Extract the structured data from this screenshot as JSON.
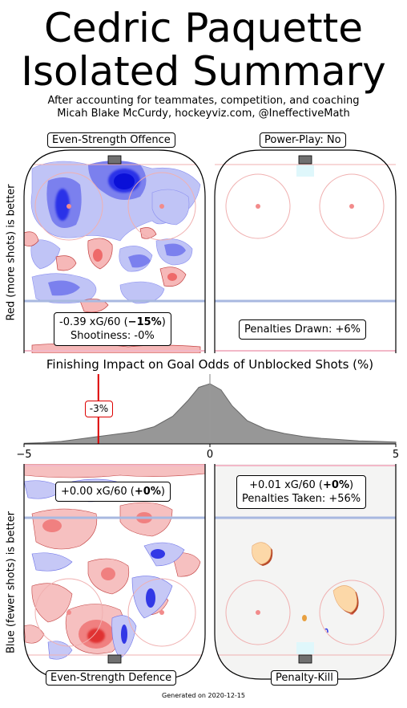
{
  "title_line1": "Cedric Paquette",
  "title_line2": "Isolated Summary",
  "subtitle_line1": "After accounting for teammates, competition, and coaching",
  "subtitle_line2": "Micah Blake McCurdy, hockeyviz.com, @IneffectiveMath",
  "side_label_top": "Red (more shots) is better",
  "side_label_bottom": "Blue (fewer shots) is better",
  "panels": {
    "es_offence": {
      "label": "Even-Strength Offence",
      "stat_prefix": "-0.39 xG/60 (",
      "stat_bold": "−15%",
      "stat_suffix": ")",
      "stat_line2": "Shootiness: -0%"
    },
    "pp": {
      "label": "Power-Play: No",
      "stat_line1": "Penalties Drawn: +6%"
    },
    "es_defence": {
      "label": "Even-Strength Defence",
      "stat_prefix": "+0.00 xG/60 (",
      "stat_bold": "+0%",
      "stat_suffix": ")"
    },
    "pk": {
      "label": "Penalty-Kill",
      "stat_prefix": "+0.01 xG/60 (",
      "stat_bold": "+0%",
      "stat_suffix": ")",
      "stat_line2": "Penalties Taken: +56%"
    }
  },
  "footer": "Generated on 2020-12-15",
  "colors": {
    "red": "#e8292b",
    "blue": "#1f24e0",
    "density": "#8c8c8c",
    "marker": "#dd0000",
    "blueline": "#a8b8e0"
  },
  "chart_data": {
    "type": "area",
    "title": "Finishing Impact on Goal Odds of Unblocked Shots (%)",
    "xlim": [
      -5,
      5
    ],
    "ticks": [
      "−5",
      "0",
      "5"
    ],
    "tick_values": [
      -5,
      0,
      5
    ],
    "x": [
      -5,
      -4.5,
      -4,
      -3.5,
      -3,
      -2.5,
      -2,
      -1.5,
      -1,
      -0.6,
      -0.3,
      0,
      0.3,
      0.6,
      1,
      1.5,
      2,
      2.5,
      3,
      3.5,
      4,
      4.5,
      5
    ],
    "y": [
      0.01,
      0.02,
      0.04,
      0.08,
      0.12,
      0.16,
      0.2,
      0.28,
      0.45,
      0.7,
      0.92,
      0.98,
      0.88,
      0.62,
      0.38,
      0.24,
      0.17,
      0.12,
      0.09,
      0.07,
      0.05,
      0.04,
      0.03
    ],
    "player_value": -3,
    "player_label": "-3%"
  }
}
